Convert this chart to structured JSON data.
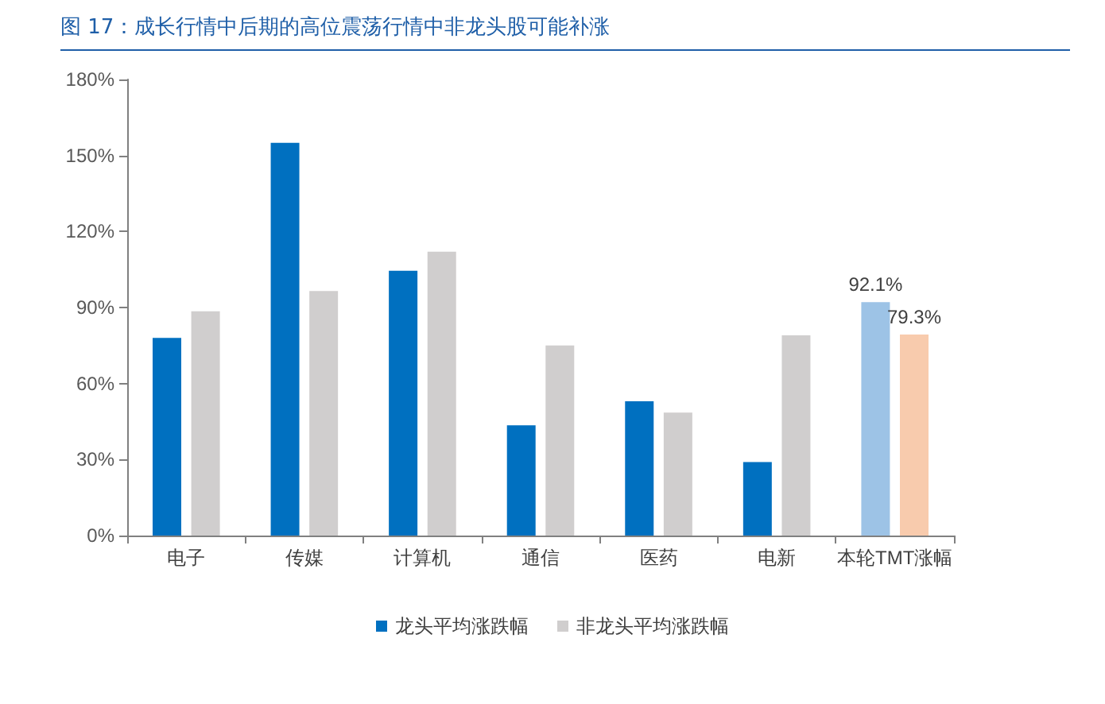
{
  "chart_data": {
    "type": "bar",
    "title": "图 17：成长行情中后期的高位震荡行情中非龙头股可能补涨",
    "categories": [
      "电子",
      "传媒",
      "计算机",
      "通信",
      "医药",
      "电新",
      "本轮TMT涨幅"
    ],
    "series": [
      {
        "name": "龙头平均涨跌幅",
        "color": "#0070c0",
        "colors": [
          "#0070c0",
          "#0070c0",
          "#0070c0",
          "#0070c0",
          "#0070c0",
          "#0070c0",
          "#9dc3e6"
        ],
        "values": [
          78,
          155,
          104.5,
          43.5,
          53,
          29,
          92.1
        ],
        "value_labels": [
          null,
          null,
          null,
          null,
          null,
          null,
          "92.1%"
        ]
      },
      {
        "name": "非龙头平均涨跌幅",
        "color": "#d0cece",
        "colors": [
          "#d0cece",
          "#d0cece",
          "#d0cece",
          "#d0cece",
          "#d0cece",
          "#d0cece",
          "#f8cbad"
        ],
        "values": [
          88.5,
          96.5,
          112,
          75,
          48.5,
          79,
          79.3
        ],
        "value_labels": [
          null,
          null,
          null,
          null,
          null,
          null,
          "79.3%"
        ]
      }
    ],
    "ylim": [
      0,
      180
    ],
    "yticks": [
      {
        "value": 0,
        "label": "0%"
      },
      {
        "value": 30,
        "label": "30%"
      },
      {
        "value": 60,
        "label": "60%"
      },
      {
        "value": 90,
        "label": "90%"
      },
      {
        "value": 120,
        "label": "120%"
      },
      {
        "value": 150,
        "label": "150%"
      },
      {
        "value": 180,
        "label": "180%"
      }
    ],
    "grid": false,
    "legend": "bottom"
  }
}
